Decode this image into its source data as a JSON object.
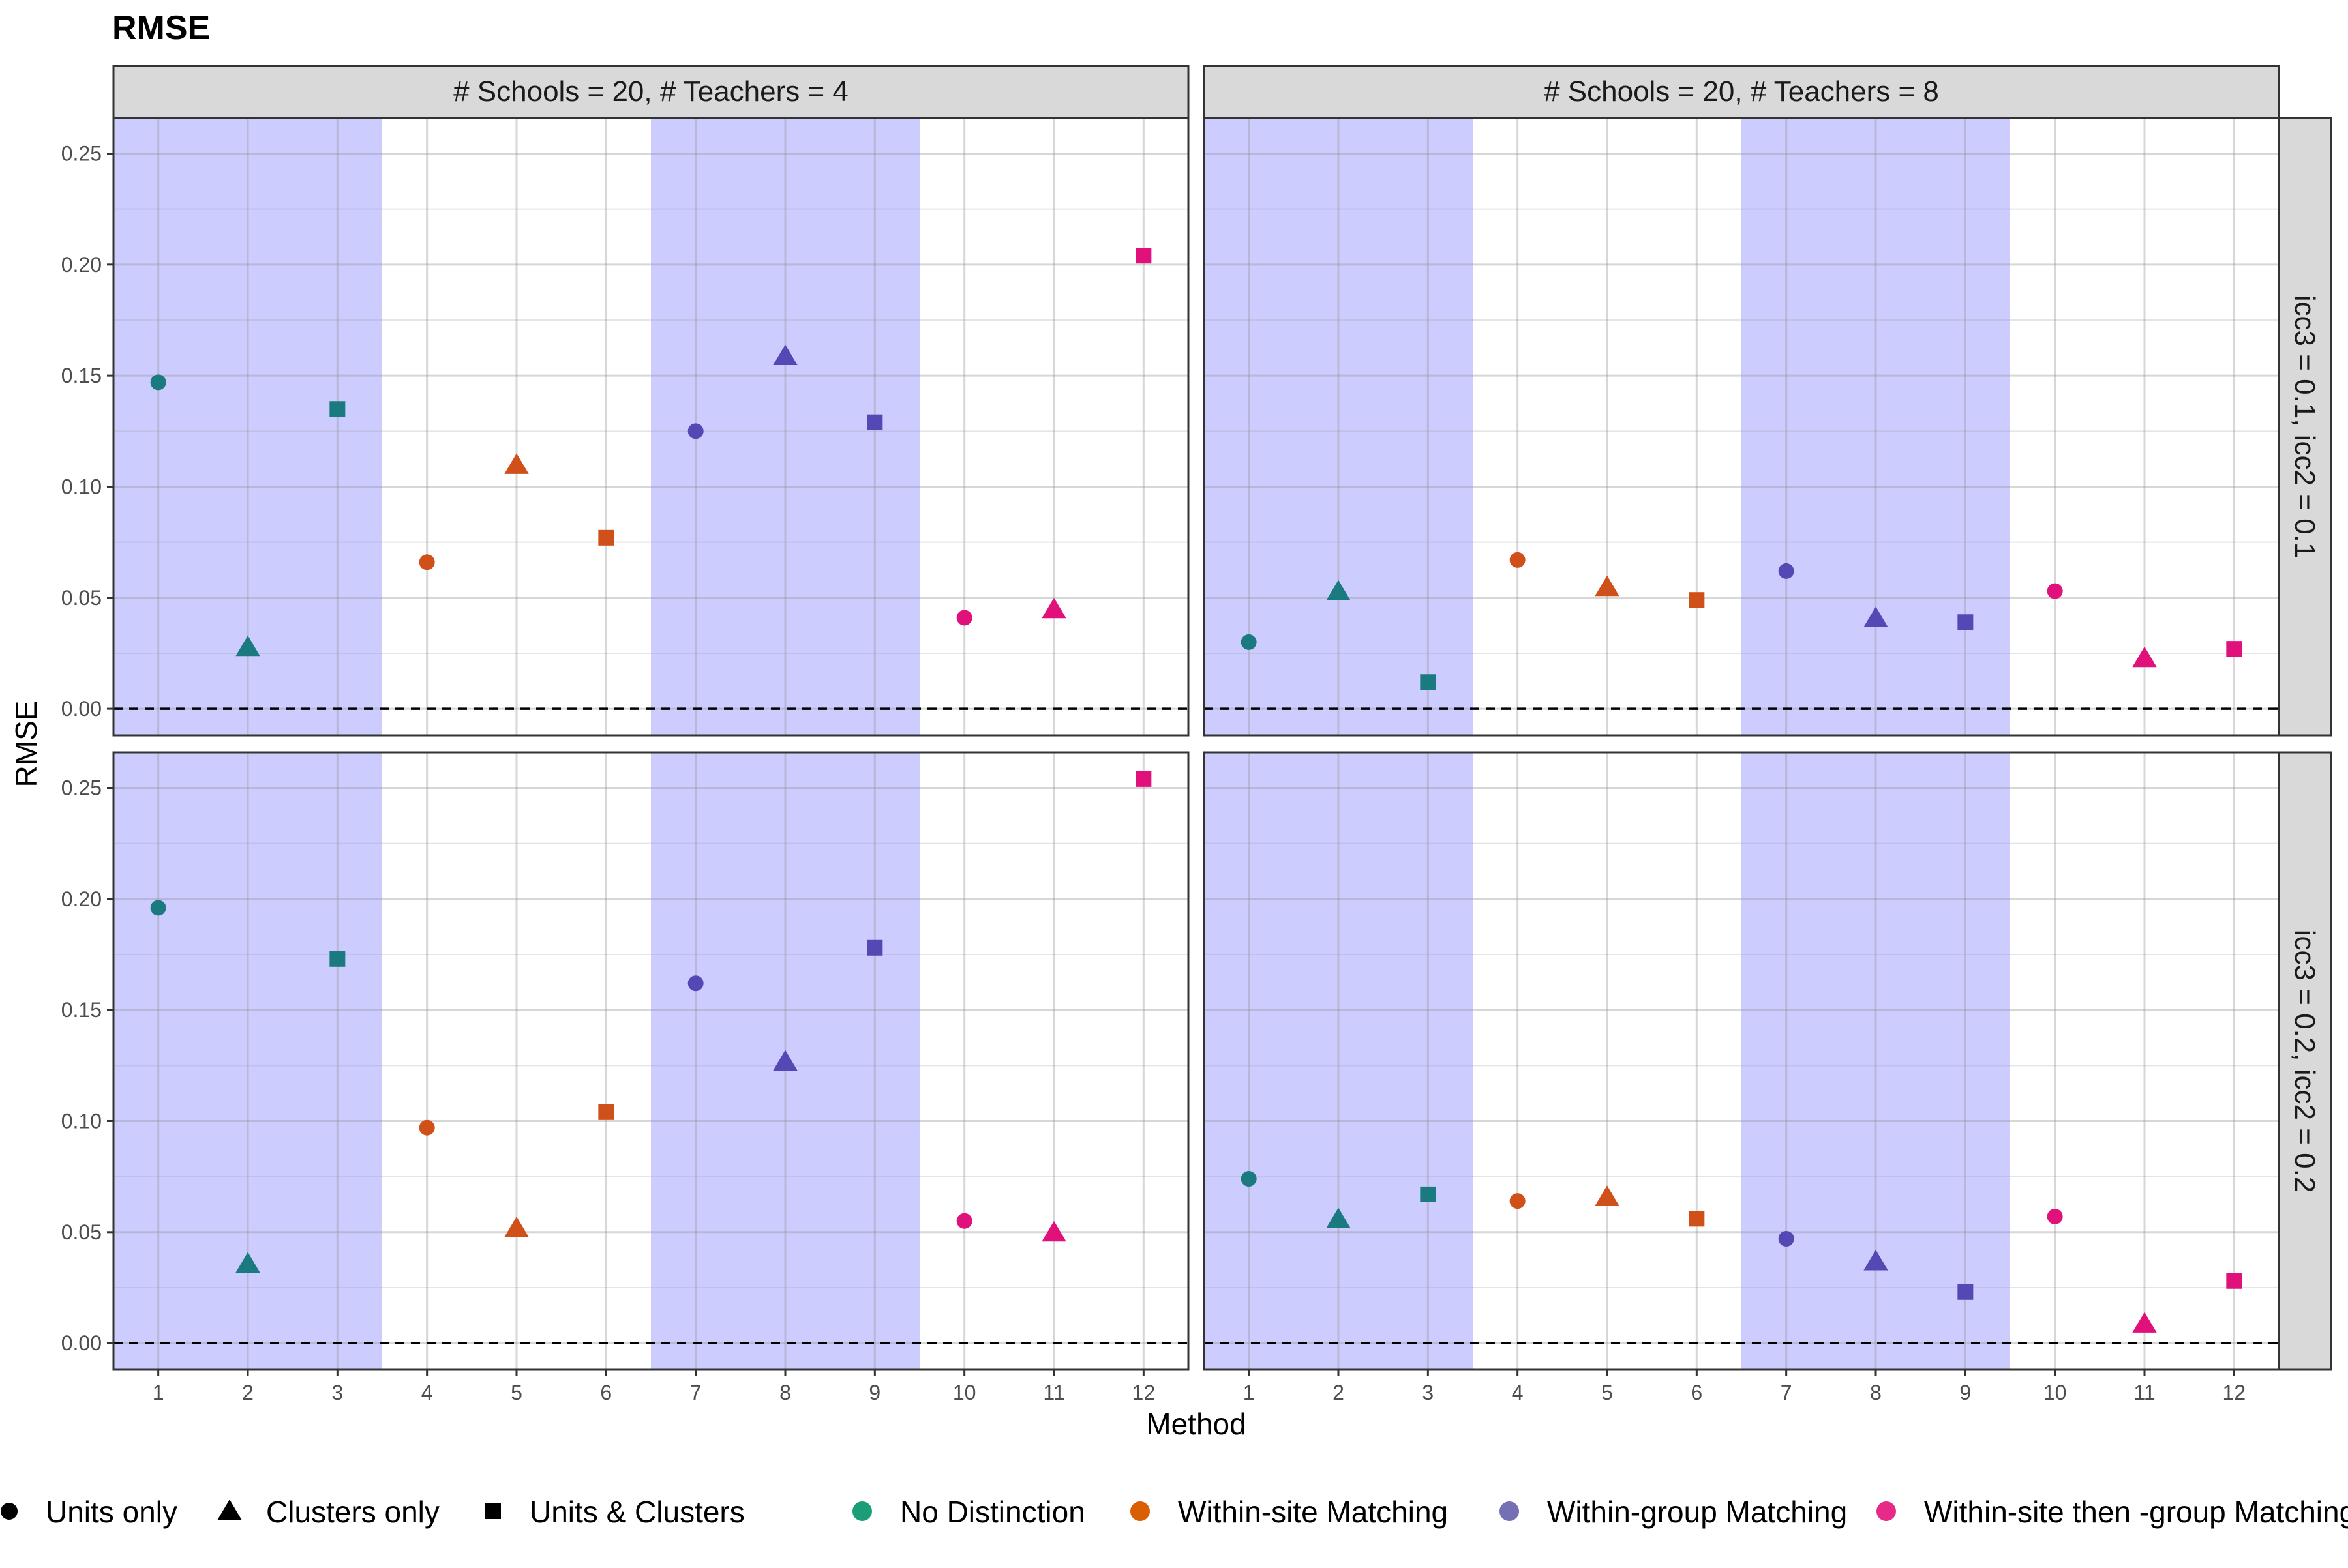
{
  "chart_data": {
    "type": "scatter",
    "title": "RMSE",
    "xlabel": "Method",
    "ylabel": "RMSE",
    "x_ticks": [
      "1",
      "2",
      "3",
      "4",
      "5",
      "6",
      "7",
      "8",
      "9",
      "10",
      "11",
      "12"
    ],
    "y_ticks": [
      "0.00",
      "0.05",
      "0.10",
      "0.15",
      "0.20",
      "0.25"
    ],
    "xlim": [
      0.5,
      12.5
    ],
    "ylim": [
      -0.012,
      0.266
    ],
    "reference_line": {
      "y": 0,
      "style": "dashed"
    },
    "shaded_ranges": [
      [
        0.5,
        3.5
      ],
      [
        6.5,
        9.5
      ]
    ],
    "shade_color": "#ccccff",
    "grid": true,
    "column_strips": [
      "# Schools = 20, # Teachers = 4",
      "# Schools = 20, # Teachers = 8"
    ],
    "row_strips": [
      "icc3 = 0.1, icc2  = 0.1",
      "icc3 = 0.2, icc2  = 0.2"
    ],
    "shapes": [
      "circle",
      "triangle",
      "square",
      "circle",
      "triangle",
      "square",
      "circle",
      "triangle",
      "square",
      "circle",
      "triangle",
      "square"
    ],
    "group_colors": [
      "#1b9e77",
      "#1b9e77",
      "#1b9e77",
      "#d95f02",
      "#d95f02",
      "#d95f02",
      "#7570b3",
      "#7570b3",
      "#7570b3",
      "#e7298a",
      "#e7298a",
      "#e7298a"
    ],
    "point_colors": [
      "#1b7a80",
      "#1b7a80",
      "#1b7a80",
      "#d0501a",
      "#d0501a",
      "#d0501a",
      "#5448b5",
      "#5448b5",
      "#5448b5",
      "#e0117a",
      "#e0117a",
      "#e0117a"
    ],
    "panels": [
      {
        "col": 0,
        "row": 0,
        "values": [
          0.147,
          0.028,
          0.135,
          0.066,
          0.11,
          0.077,
          0.125,
          0.159,
          0.129,
          0.041,
          0.045,
          0.204
        ]
      },
      {
        "col": 1,
        "row": 0,
        "values": [
          0.03,
          0.053,
          0.012,
          0.067,
          0.055,
          0.049,
          0.062,
          0.041,
          0.039,
          0.053,
          0.023,
          0.027
        ]
      },
      {
        "col": 0,
        "row": 1,
        "values": [
          0.196,
          0.036,
          0.173,
          0.097,
          0.052,
          0.104,
          0.162,
          0.127,
          0.178,
          0.055,
          0.05,
          0.254
        ]
      },
      {
        "col": 1,
        "row": 1,
        "values": [
          0.074,
          0.056,
          0.067,
          0.064,
          0.066,
          0.056,
          0.047,
          0.037,
          0.023,
          0.057,
          0.009,
          0.028
        ]
      }
    ],
    "legend_position": "bottom",
    "legend_shapes": [
      {
        "shape": "circle",
        "label": "Units only"
      },
      {
        "shape": "triangle",
        "label": "Clusters only"
      },
      {
        "shape": "square",
        "label": "Units & Clusters"
      }
    ],
    "legend_colors": [
      {
        "color": "#1b9e77",
        "label": "No Distinction"
      },
      {
        "color": "#d95f02",
        "label": "Within-site Matching"
      },
      {
        "color": "#7570b3",
        "label": "Within-group Matching"
      },
      {
        "color": "#e7298a",
        "label": "Within-site then -group Matching"
      }
    ]
  }
}
